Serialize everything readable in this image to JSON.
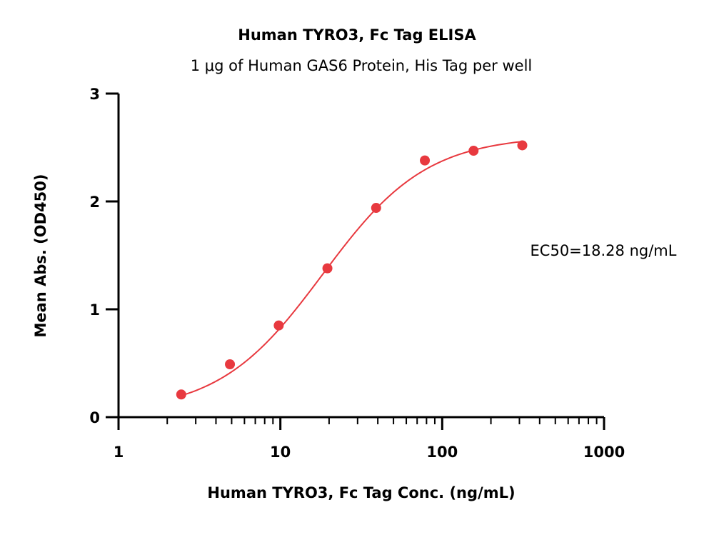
{
  "chart_data": {
    "type": "scatter",
    "title": "Human TYRO3, Fc Tag ELISA",
    "subtitle": "1 μg of Human GAS6 Protein, His Tag per well",
    "xlabel": "Human TYRO3, Fc Tag Conc. (ng/mL)",
    "ylabel": "Mean Abs. (OD450)",
    "x_scale": "log",
    "xlim": [
      1,
      1000
    ],
    "ylim": [
      0,
      3
    ],
    "x_ticks": [
      1,
      10,
      100,
      1000
    ],
    "x_tick_labels": [
      "1",
      "10",
      "100",
      "1000"
    ],
    "y_ticks": [
      0,
      1,
      2,
      3
    ],
    "y_tick_labels": [
      "0",
      "1",
      "2",
      "3"
    ],
    "grid": false,
    "series": [
      {
        "x": [
          2.44,
          4.88,
          9.77,
          19.53,
          39.06,
          78.13,
          156.25,
          312.5
        ],
        "y": [
          0.21,
          0.49,
          0.85,
          1.38,
          1.94,
          2.38,
          2.47,
          2.52
        ],
        "color": "#e8393f",
        "fit": "4PL"
      }
    ],
    "annotation": "EC50=18.28 ng/mL"
  }
}
